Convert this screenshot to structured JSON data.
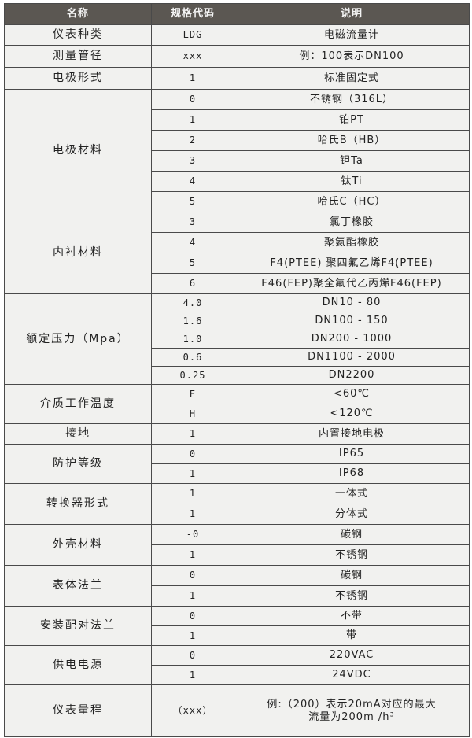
{
  "header": {
    "name": "名称",
    "code": "规格代码",
    "desc": "说明"
  },
  "groups": [
    {
      "name": "仪表种类",
      "rows": [
        {
          "code": "LDG",
          "desc": "电磁流量计"
        }
      ]
    },
    {
      "name": "测量管径",
      "rows": [
        {
          "code": "xxx",
          "desc": "例：100表示DN100"
        }
      ]
    },
    {
      "name": "电极形式",
      "rows": [
        {
          "code": "1",
          "desc": "标准固定式"
        }
      ]
    },
    {
      "name": "电极材料",
      "rows": [
        {
          "code": "0",
          "desc": "不锈钢（316L）"
        },
        {
          "code": "1",
          "desc": "铂PT"
        },
        {
          "code": "2",
          "desc": "哈氏B（HB）"
        },
        {
          "code": "3",
          "desc": "钽Ta"
        },
        {
          "code": "4",
          "desc": "钛Ti"
        },
        {
          "code": "5",
          "desc": "哈氏C（HC）"
        }
      ]
    },
    {
      "name": "内衬材料",
      "rows": [
        {
          "code": "3",
          "desc": "氯丁橡胶"
        },
        {
          "code": "4",
          "desc": "聚氨酯橡胶"
        },
        {
          "code": "5",
          "desc": "F4(PTEE) 聚四氟乙烯F4(PTEE)"
        },
        {
          "code": "6",
          "desc": "F46(FEP)聚全氟代乙丙烯F46(FEP)"
        }
      ]
    },
    {
      "name": "额定压力（Mpa）",
      "rows": [
        {
          "code": "4.0",
          "desc": "DN10 - 80"
        },
        {
          "code": "1.6",
          "desc": "DN100 - 150"
        },
        {
          "code": "1.0",
          "desc": "DN200 - 1000"
        },
        {
          "code": "0.6",
          "desc": "DN1100 - 2000"
        },
        {
          "code": "0.25",
          "desc": "DN2200"
        }
      ]
    },
    {
      "name": "介质工作温度",
      "rows": [
        {
          "code": "E",
          "desc": "<60℃"
        },
        {
          "code": "H",
          "desc": "<120℃"
        }
      ]
    },
    {
      "name": "接地",
      "rows": [
        {
          "code": "1",
          "desc": "内置接地电极"
        }
      ]
    },
    {
      "name": "防护等级",
      "rows": [
        {
          "code": "0",
          "desc": "IP65"
        },
        {
          "code": "1",
          "desc": "IP68"
        }
      ]
    },
    {
      "name": "转换器形式",
      "rows": [
        {
          "code": "1",
          "desc": "一体式"
        },
        {
          "code": "1",
          "desc": "分体式"
        }
      ]
    },
    {
      "name": "外壳材料",
      "rows": [
        {
          "code": "-0",
          "desc": "碳钢"
        },
        {
          "code": "1",
          "desc": "不锈钢"
        }
      ]
    },
    {
      "name": "表体法兰",
      "rows": [
        {
          "code": "0",
          "desc": "碳钢"
        },
        {
          "code": "1",
          "desc": "不锈钢"
        }
      ]
    },
    {
      "name": "安装配对法兰",
      "rows": [
        {
          "code": "0",
          "desc": "不带"
        },
        {
          "code": "1",
          "desc": "带"
        }
      ]
    },
    {
      "name": "供电电源",
      "rows": [
        {
          "code": "0",
          "desc": "220VAC"
        },
        {
          "code": "1",
          "desc": "24VDC"
        }
      ]
    },
    {
      "name": "仪表量程",
      "rows": [
        {
          "code": "（xxx）",
          "desc": "例:（200）表示20mA对应的最大流量为200m /h³"
        }
      ]
    }
  ]
}
